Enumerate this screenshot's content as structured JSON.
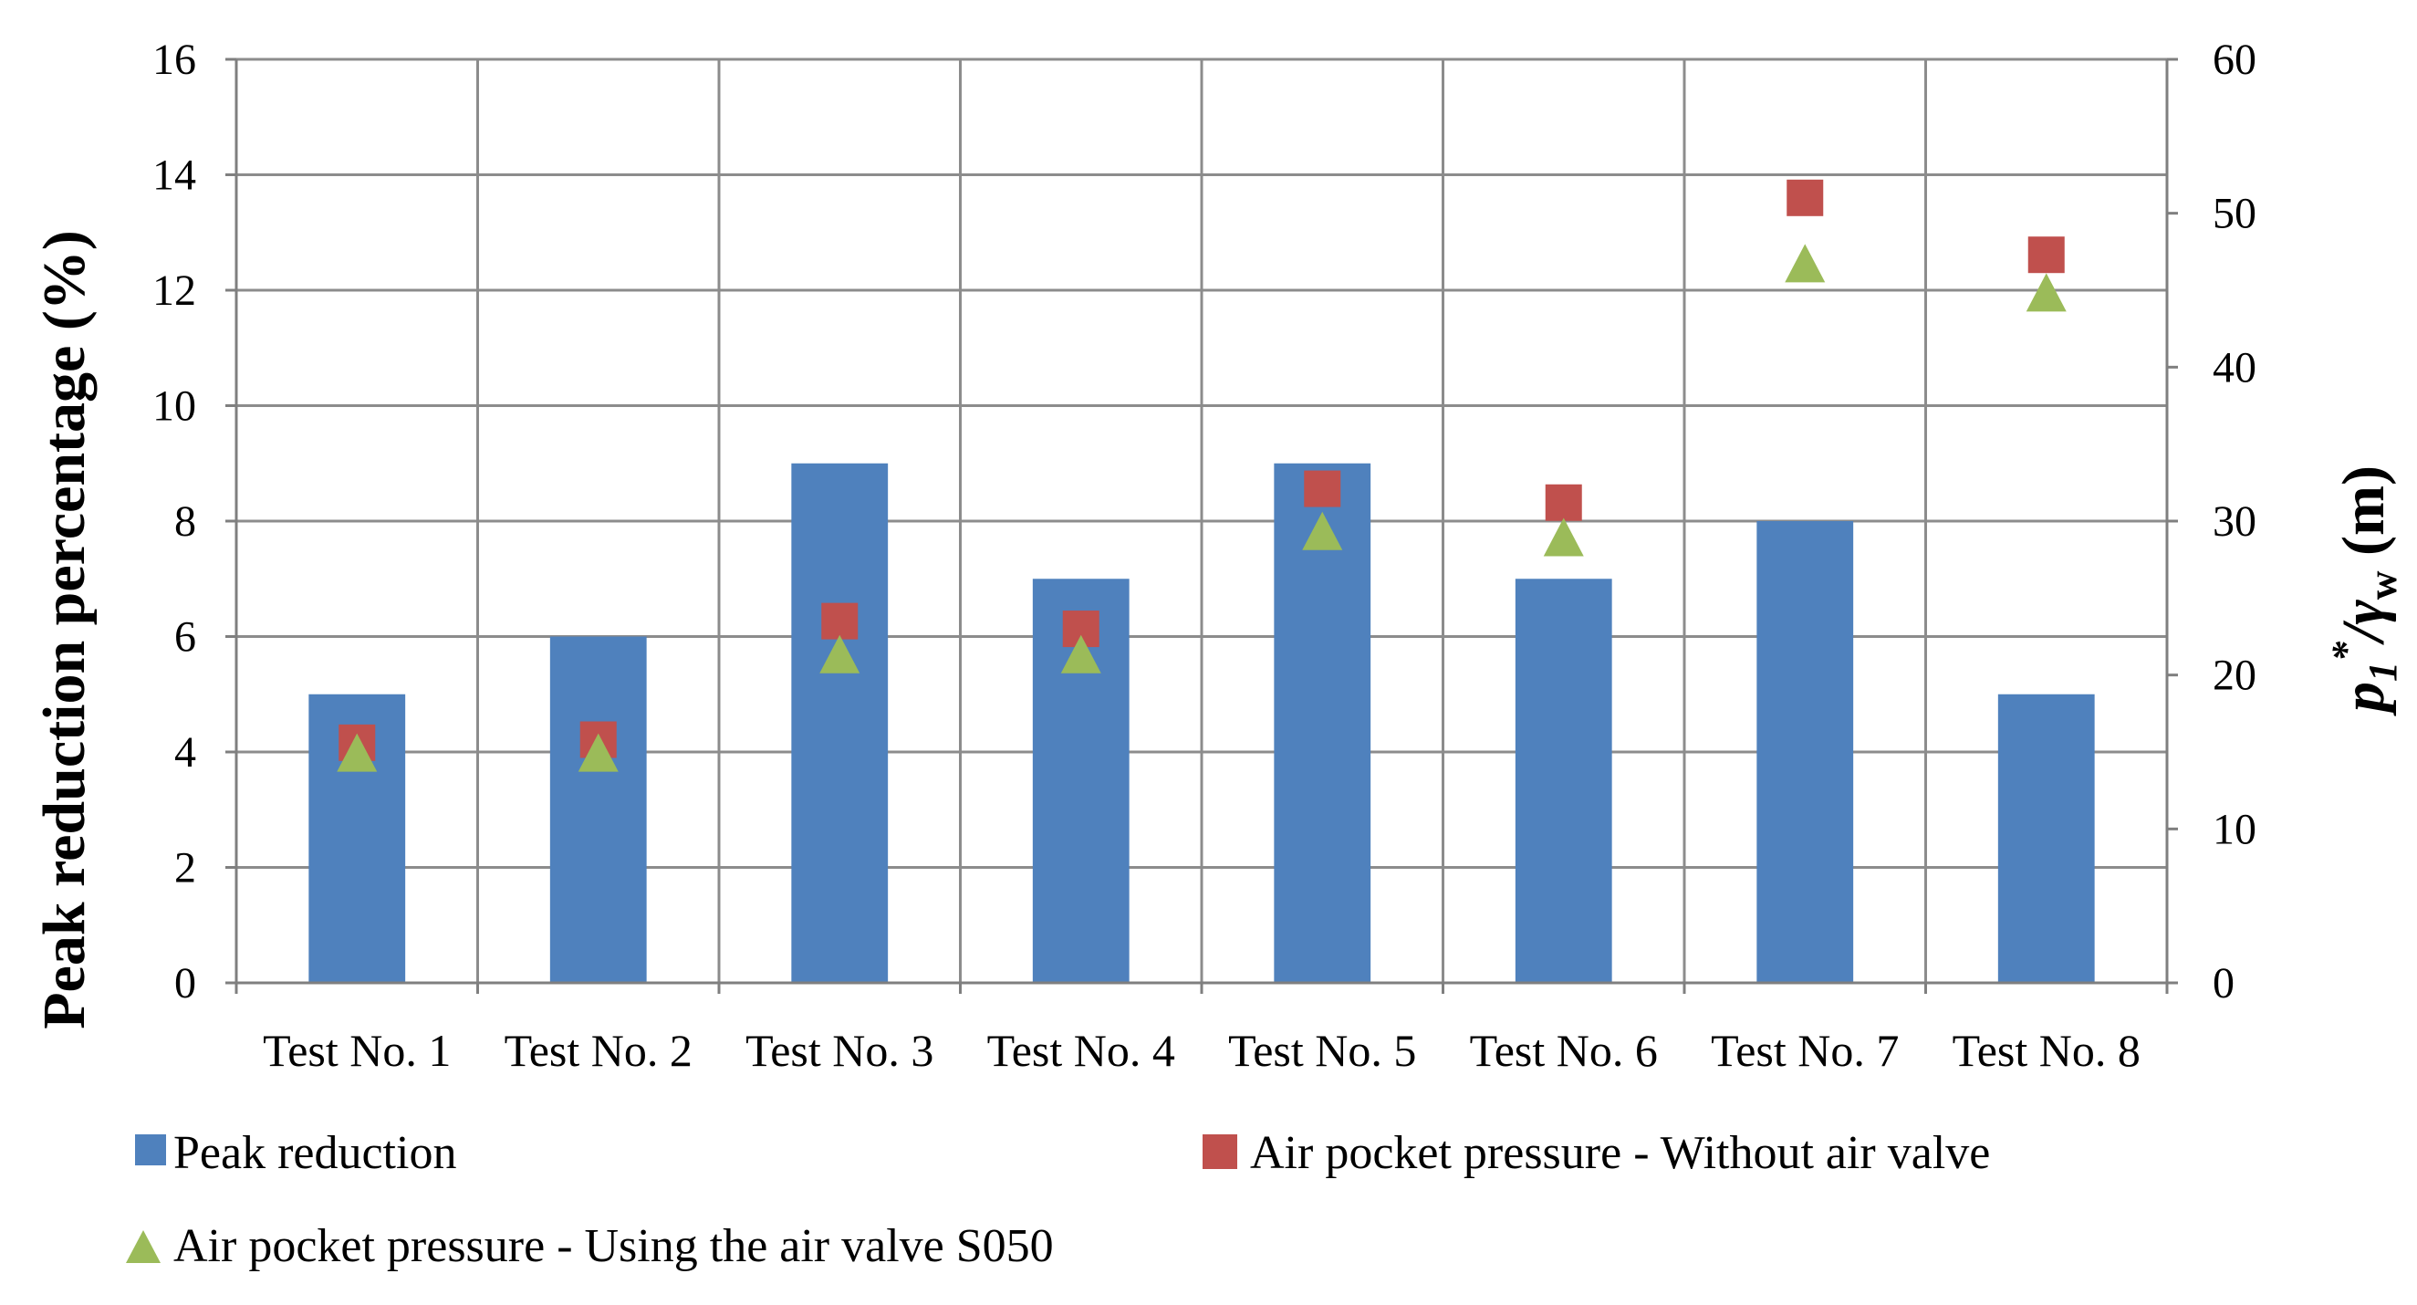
{
  "chart_data": {
    "type": "bar",
    "title": "",
    "categories": [
      "Test No. 1",
      "Test No. 2",
      "Test No. 3",
      "Test No. 4",
      "Test No. 5",
      "Test No. 6",
      "Test No. 7",
      "Test No. 8"
    ],
    "xlabel": "",
    "y_left": {
      "label": "Peak reduction percentage (%)",
      "range": [
        0,
        16
      ],
      "ticks": [
        0,
        2,
        4,
        6,
        8,
        10,
        12,
        14,
        16
      ]
    },
    "y_right": {
      "label_main": "p",
      "label_sub1": "1",
      "label_sup": "*",
      "label_slash": "/γ",
      "label_sub2": "w",
      "label_units": " (m)",
      "range": [
        0,
        60
      ],
      "ticks": [
        0,
        10,
        20,
        30,
        40,
        50,
        60
      ]
    },
    "grid": true,
    "legend_position": "bottom",
    "series": [
      {
        "name": "Peak reduction",
        "type": "bar",
        "axis": "left",
        "color": "#4f81bd",
        "values": [
          5,
          6,
          9,
          7,
          9,
          7,
          8,
          5
        ]
      },
      {
        "name": "Air pocket pressure - Without air valve",
        "type": "scatter",
        "marker": "square",
        "axis": "right",
        "color": "#c0504d",
        "values": [
          15.6,
          15.8,
          23.5,
          23.0,
          32.1,
          31.2,
          51.0,
          47.3
        ]
      },
      {
        "name": "Air pocket pressure - Using the air valve S050",
        "type": "scatter",
        "marker": "triangle",
        "axis": "right",
        "color": "#9bbb59",
        "values": [
          14.9,
          14.9,
          21.3,
          21.3,
          29.3,
          28.9,
          46.7,
          44.8
        ]
      }
    ]
  }
}
